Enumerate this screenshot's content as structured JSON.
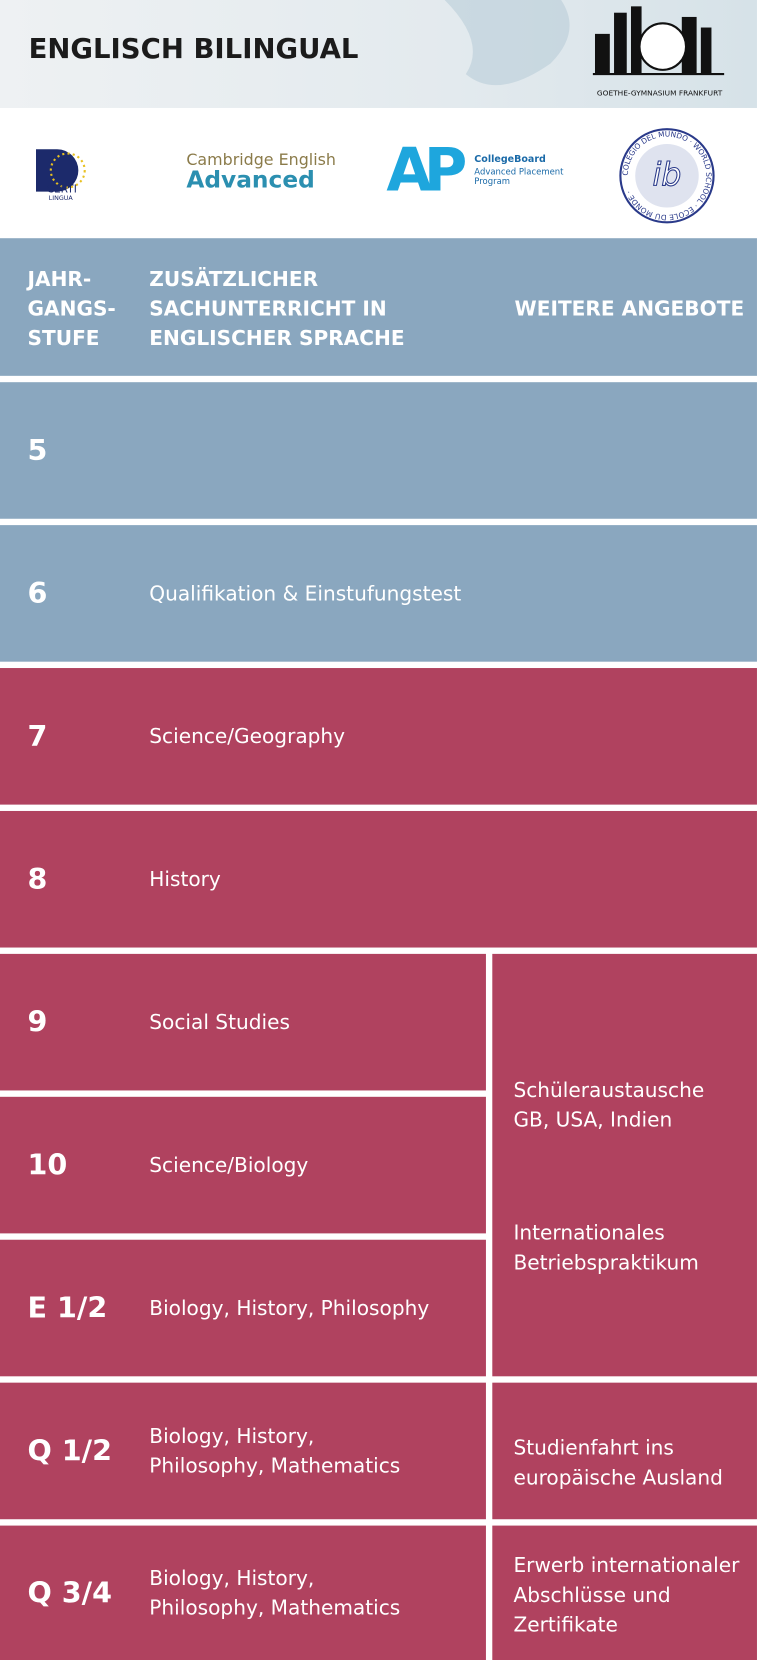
{
  "header": {
    "title": "ENGLISCH BILINGUAL",
    "school": "GOETHE-GYMNASIUM FRANKFURT"
  },
  "logos": {
    "certilingua": [
      "CERTI",
      "LINGUA"
    ],
    "cambridge": [
      "Cambridge English",
      "Advanced"
    ],
    "ap": [
      "AP",
      "CollegeBoard",
      "Advanced Placement",
      "Program"
    ],
    "ib": [
      "ib",
      "COLEGIO DEL MUNDO · WORLD SCHOOL · ECOLE DU MONDE ·"
    ]
  },
  "table": {
    "headers": [
      "JAHR-\nGANGS-\nSTUFE",
      "ZUSÄTZLICHER\nSACHUNTERRICHT IN\nENGLISCHER SPRACHE",
      "WEITERE ANGEBOTE"
    ],
    "rows": [
      [
        "5",
        ""
      ],
      [
        "6",
        "Qualifikation & Einstufungstest"
      ],
      [
        "7",
        "Science/Geography"
      ],
      [
        "8",
        "History"
      ],
      [
        "9",
        "Social Studies"
      ],
      [
        "10",
        "Science/Biology"
      ],
      [
        "E 1/2",
        "Biology, History, Philosophy"
      ],
      [
        "Q 1/2",
        "Biology, History,\nPhilosophy, Mathematics"
      ],
      [
        "Q 3/4",
        "Biology, History,\nPhilosophy, Mathematics"
      ]
    ],
    "extras": [
      [
        "Schüleraustausche\nGB, USA, Indien",
        "Internationales\nBetriebspraktikum"
      ],
      [
        "Studienfahrt ins\neuropäische Ausland"
      ],
      [
        "Erwerb internationaler\nAbschlüsse und\nZertifikate"
      ]
    ]
  }
}
